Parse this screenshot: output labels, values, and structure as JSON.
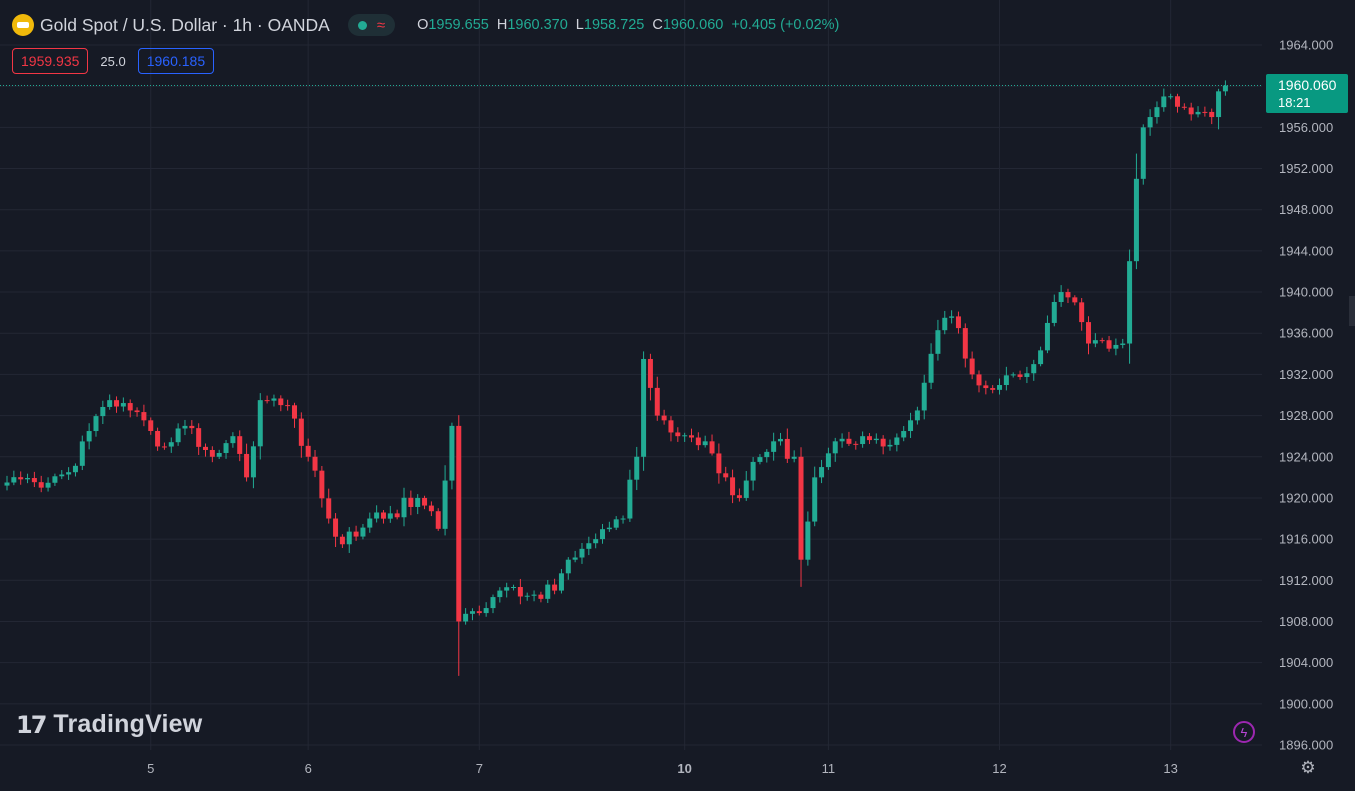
{
  "header": {
    "symbol_title": "Gold Spot / U.S. Dollar · 1h · OANDA",
    "ohlc": {
      "o_label": "O",
      "o_value": "1959.655",
      "h_label": "H",
      "h_value": "1960.370",
      "l_label": "L",
      "l_value": "1958.725",
      "c_label": "C",
      "c_value": "1960.060",
      "change": "+0.405 (+0.02%)"
    },
    "status_icons": [
      "market-open-dot-icon",
      "delayed-data-icon"
    ]
  },
  "trade": {
    "sell_price": "1959.935",
    "spread": "25.0",
    "buy_price": "1960.185"
  },
  "last_price": {
    "price": "1960.060",
    "countdown": "18:21"
  },
  "branding": {
    "logo_text": "TradingView"
  },
  "colors": {
    "background": "#161a25",
    "up": "#22ab94",
    "down": "#f23645",
    "grid": "#232734",
    "price_tag": "#089981"
  },
  "chart_data": {
    "type": "candlestick",
    "y_ticks": [
      "1964.000",
      "1960.000",
      "1956.000",
      "1952.000",
      "1948.000",
      "1944.000",
      "1940.000",
      "1936.000",
      "1932.000",
      "1928.000",
      "1924.000",
      "1920.000",
      "1916.000",
      "1912.000",
      "1908.000",
      "1904.000",
      "1900.000",
      "1896.000"
    ],
    "ylim": [
      1896,
      1964
    ],
    "x_ticks": [
      {
        "label": "5",
        "bar": 21,
        "bold": false
      },
      {
        "label": "6",
        "bar": 44,
        "bold": false
      },
      {
        "label": "7",
        "bar": 69,
        "bold": false
      },
      {
        "label": "10",
        "bar": 99,
        "bold": true
      },
      {
        "label": "11",
        "bar": 120,
        "bold": false
      },
      {
        "label": "12",
        "bar": 145,
        "bold": false
      },
      {
        "label": "13",
        "bar": 170,
        "bold": false
      }
    ],
    "num_bars": 180,
    "last_close": 1960.06,
    "anchors": [
      [
        0,
        1921.5
      ],
      [
        5,
        1921.0
      ],
      [
        9,
        1922.5
      ],
      [
        12,
        1926.5
      ],
      [
        15,
        1929.5
      ],
      [
        18,
        1928.5
      ],
      [
        22,
        1925.0
      ],
      [
        26,
        1927.0
      ],
      [
        30,
        1924.0
      ],
      [
        33,
        1926.0
      ],
      [
        35,
        1922.0
      ],
      [
        37,
        1929.5
      ],
      [
        41,
        1929.0
      ],
      [
        44,
        1924.0
      ],
      [
        47,
        1918.0
      ],
      [
        49,
        1915.5
      ],
      [
        53,
        1918.0
      ],
      [
        56,
        1918.5
      ],
      [
        60,
        1920.0
      ],
      [
        63,
        1917.0
      ],
      [
        65,
        1927.0
      ],
      [
        66,
        1908.0
      ],
      [
        68,
        1909.0
      ],
      [
        72,
        1911.0
      ],
      [
        76,
        1910.5
      ],
      [
        80,
        1911.0
      ],
      [
        82,
        1914.0
      ],
      [
        86,
        1916.0
      ],
      [
        90,
        1918.0
      ],
      [
        92,
        1924.0
      ],
      [
        93,
        1933.5
      ],
      [
        95,
        1928.0
      ],
      [
        98,
        1926.0
      ],
      [
        102,
        1925.5
      ],
      [
        105,
        1922.0
      ],
      [
        107,
        1920.0
      ],
      [
        109,
        1923.5
      ],
      [
        112,
        1925.5
      ],
      [
        115,
        1924.0
      ],
      [
        116,
        1914.0
      ],
      [
        118,
        1922.0
      ],
      [
        121,
        1925.5
      ],
      [
        125,
        1926.0
      ],
      [
        128,
        1925.0
      ],
      [
        131,
        1926.5
      ],
      [
        133,
        1928.5
      ],
      [
        135,
        1934.0
      ],
      [
        137,
        1937.5
      ],
      [
        139,
        1936.5
      ],
      [
        141,
        1932.0
      ],
      [
        144,
        1930.5
      ],
      [
        147,
        1932.0
      ],
      [
        150,
        1933.0
      ],
      [
        152,
        1937.0
      ],
      [
        154,
        1940.0
      ],
      [
        156,
        1939.0
      ],
      [
        158,
        1935.0
      ],
      [
        161,
        1934.5
      ],
      [
        163,
        1935.0
      ],
      [
        164,
        1943.0
      ],
      [
        165,
        1951.0
      ],
      [
        166,
        1956.0
      ],
      [
        167,
        1957.0
      ],
      [
        169,
        1959.0
      ],
      [
        171,
        1958.0
      ],
      [
        174,
        1957.5
      ],
      [
        176,
        1957.0
      ],
      [
        177,
        1959.5
      ],
      [
        178,
        1960.06
      ]
    ]
  }
}
